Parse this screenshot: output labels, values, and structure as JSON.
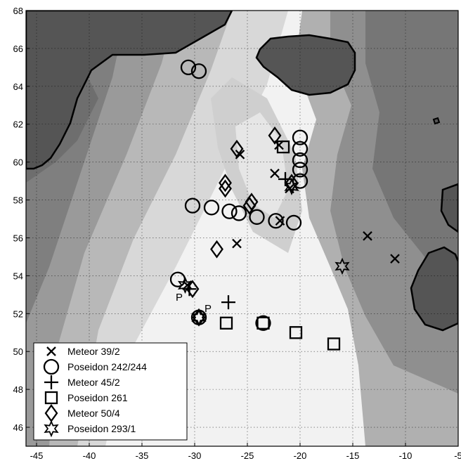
{
  "chart_data": {
    "type": "scatter",
    "title": "",
    "xlabel": "",
    "ylabel": "",
    "xlim": [
      -46,
      -5
    ],
    "ylim": [
      45,
      68
    ],
    "grid": true,
    "xticks": [
      -45,
      -40,
      -35,
      -30,
      -25,
      -20,
      -15,
      -10,
      -5
    ],
    "yticks": [
      46,
      48,
      50,
      52,
      54,
      56,
      58,
      60,
      62,
      64,
      66,
      68
    ],
    "legend_position": "bottom-left",
    "background": "grayscale bathymetry with black coastlines (Greenland, Iceland, Ireland)",
    "colors": {
      "ink": "#000000",
      "land": "#555555",
      "deep": "#6e6e6e",
      "shelf": "#f2f2f2"
    },
    "series": [
      {
        "name": "Meteor 39/2",
        "marker": "x",
        "points": [
          {
            "x": -30.7,
            "y": 53.5
          },
          {
            "x": -26.0,
            "y": 55.7
          },
          {
            "x": -25.7,
            "y": 60.4
          },
          {
            "x": -22.4,
            "y": 59.4
          },
          {
            "x": -22.0,
            "y": 60.9
          },
          {
            "x": -21.9,
            "y": 56.9
          },
          {
            "x": -21.0,
            "y": 58.6
          },
          {
            "x": -13.6,
            "y": 56.1
          },
          {
            "x": -11.0,
            "y": 54.9
          }
        ]
      },
      {
        "name": "Poseidon 242/244",
        "marker": "circle",
        "points": [
          {
            "x": -30.6,
            "y": 65.0
          },
          {
            "x": -29.6,
            "y": 64.8
          },
          {
            "x": -31.6,
            "y": 53.8
          },
          {
            "x": -30.2,
            "y": 57.7
          },
          {
            "x": -28.4,
            "y": 57.6
          },
          {
            "x": -26.7,
            "y": 57.4
          },
          {
            "x": -25.8,
            "y": 57.3
          },
          {
            "x": -24.1,
            "y": 57.1
          },
          {
            "x": -22.3,
            "y": 56.9
          },
          {
            "x": -20.6,
            "y": 56.8
          },
          {
            "x": -20.0,
            "y": 59.0
          },
          {
            "x": -20.0,
            "y": 59.6
          },
          {
            "x": -20.0,
            "y": 60.1
          },
          {
            "x": -20.0,
            "y": 60.7
          },
          {
            "x": -20.0,
            "y": 61.3
          },
          {
            "x": -23.5,
            "y": 51.5
          },
          {
            "x": -29.6,
            "y": 51.8
          }
        ]
      },
      {
        "name": "Meteor 45/2",
        "marker": "plus",
        "points": [
          {
            "x": -26.8,
            "y": 52.6
          },
          {
            "x": -21.4,
            "y": 59.1
          },
          {
            "x": -30.5,
            "y": 53.3
          }
        ]
      },
      {
        "name": "Poseidon 261",
        "marker": "square",
        "points": [
          {
            "x": -27.0,
            "y": 51.5
          },
          {
            "x": -23.5,
            "y": 51.5
          },
          {
            "x": -20.4,
            "y": 51.0
          },
          {
            "x": -16.8,
            "y": 50.4
          },
          {
            "x": -21.6,
            "y": 60.8
          }
        ]
      },
      {
        "name": "Meteor 50/4",
        "marker": "diamond",
        "points": [
          {
            "x": -22.4,
            "y": 61.4
          },
          {
            "x": -26.0,
            "y": 60.7
          },
          {
            "x": -27.1,
            "y": 58.9
          },
          {
            "x": -27.1,
            "y": 58.6
          },
          {
            "x": -24.6,
            "y": 57.9
          },
          {
            "x": -24.8,
            "y": 57.7
          },
          {
            "x": -27.9,
            "y": 55.4
          },
          {
            "x": -30.2,
            "y": 53.3
          },
          {
            "x": -29.6,
            "y": 51.8
          },
          {
            "x": -20.8,
            "y": 58.9
          }
        ]
      },
      {
        "name": "Poseidon 293/1",
        "marker": "star",
        "points": [
          {
            "x": -16.0,
            "y": 54.5
          },
          {
            "x": -29.6,
            "y": 51.8
          },
          {
            "x": -30.9,
            "y": 53.5
          },
          {
            "x": -20.8,
            "y": 58.7
          }
        ]
      }
    ],
    "annotations": [
      {
        "text": "P",
        "x": -31.5,
        "y": 52.9
      },
      {
        "text": "P",
        "x": -28.6,
        "y": 52.0
      }
    ]
  }
}
